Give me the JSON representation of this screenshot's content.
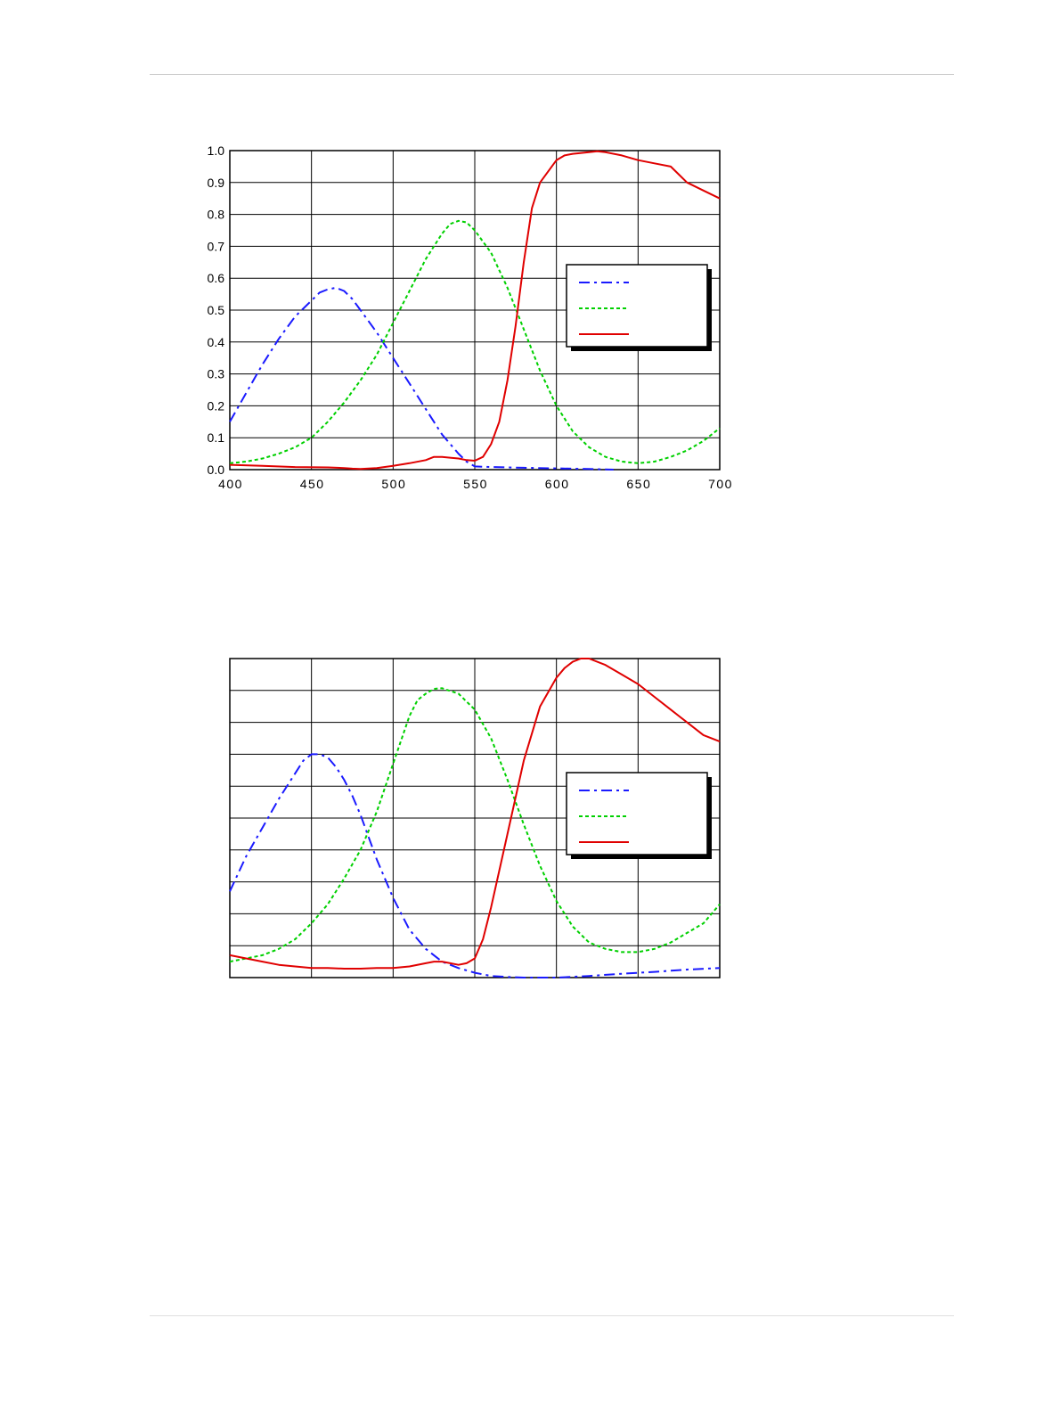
{
  "page": {
    "header_rule": true,
    "footer_rule": true
  },
  "chart_data": [
    {
      "type": "line",
      "title": "",
      "xlabel": "",
      "ylabel": "",
      "xlim": [
        400,
        700
      ],
      "ylim": [
        0.0,
        1.0
      ],
      "grid": true,
      "legend": "right",
      "x_ticks": [
        "400",
        "450",
        "500",
        "550",
        "600",
        "650",
        "700"
      ],
      "y_ticks": [
        "0.0",
        "0.1",
        "0.2",
        "0.3",
        "0.4",
        "0.5",
        "0.6",
        "0.7",
        "0.8",
        "0.9",
        "1.0"
      ],
      "series": [
        {
          "color": "#1a1aff",
          "style": "dash-dot",
          "x": [
            400,
            410,
            420,
            430,
            440,
            450,
            455,
            460,
            465,
            470,
            475,
            480,
            490,
            500,
            510,
            520,
            530,
            540,
            545,
            550,
            560,
            580,
            600,
            620,
            635
          ],
          "y": [
            0.15,
            0.24,
            0.33,
            0.41,
            0.48,
            0.53,
            0.555,
            0.565,
            0.57,
            0.56,
            0.535,
            0.5,
            0.43,
            0.35,
            0.27,
            0.19,
            0.11,
            0.05,
            0.025,
            0.01,
            0.008,
            0.006,
            0.004,
            0.002,
            0.0
          ]
        },
        {
          "color": "#00d000",
          "style": "dotted",
          "x": [
            400,
            410,
            420,
            430,
            440,
            450,
            460,
            470,
            480,
            490,
            500,
            510,
            520,
            530,
            535,
            540,
            545,
            550,
            560,
            570,
            580,
            590,
            600,
            610,
            620,
            630,
            640,
            650,
            660,
            670,
            680,
            690,
            700
          ],
          "y": [
            0.02,
            0.025,
            0.035,
            0.05,
            0.07,
            0.1,
            0.15,
            0.21,
            0.28,
            0.36,
            0.46,
            0.56,
            0.66,
            0.74,
            0.77,
            0.78,
            0.775,
            0.75,
            0.68,
            0.57,
            0.44,
            0.31,
            0.2,
            0.12,
            0.07,
            0.04,
            0.025,
            0.02,
            0.025,
            0.04,
            0.06,
            0.09,
            0.13
          ]
        },
        {
          "color": "#e00000",
          "style": "solid",
          "x": [
            400,
            420,
            440,
            460,
            470,
            475,
            480,
            490,
            500,
            510,
            520,
            525,
            530,
            540,
            545,
            550,
            555,
            560,
            565,
            570,
            575,
            580,
            585,
            590,
            600,
            605,
            610,
            620,
            625,
            630,
            640,
            650,
            660,
            670,
            680,
            690,
            700
          ],
          "y": [
            0.015,
            0.012,
            0.008,
            0.007,
            0.005,
            0.003,
            0.002,
            0.005,
            0.012,
            0.02,
            0.03,
            0.04,
            0.04,
            0.035,
            0.03,
            0.028,
            0.04,
            0.08,
            0.15,
            0.28,
            0.45,
            0.65,
            0.82,
            0.9,
            0.97,
            0.985,
            0.99,
            0.995,
            0.998,
            0.995,
            0.985,
            0.97,
            0.96,
            0.95,
            0.9,
            0.875,
            0.85
          ]
        }
      ]
    },
    {
      "type": "line",
      "title": "",
      "xlabel": "",
      "ylabel": "",
      "xlim": [
        400,
        700
      ],
      "ylim": [
        0.0,
        1.0
      ],
      "grid": true,
      "legend": "right",
      "x_ticks": [],
      "y_ticks": [],
      "series": [
        {
          "color": "#1a1aff",
          "style": "dash-dot",
          "x": [
            400,
            410,
            420,
            430,
            440,
            445,
            450,
            455,
            460,
            465,
            470,
            475,
            480,
            490,
            500,
            510,
            520,
            530,
            540,
            550,
            560,
            570,
            580,
            600,
            620,
            640,
            660,
            680,
            700
          ],
          "y": [
            0.27,
            0.38,
            0.47,
            0.56,
            0.64,
            0.68,
            0.7,
            0.7,
            0.69,
            0.66,
            0.62,
            0.57,
            0.51,
            0.37,
            0.25,
            0.15,
            0.09,
            0.05,
            0.03,
            0.015,
            0.005,
            0.002,
            0.0,
            0.0,
            0.005,
            0.012,
            0.018,
            0.025,
            0.03
          ]
        },
        {
          "color": "#00d000",
          "style": "dotted",
          "x": [
            400,
            410,
            420,
            430,
            440,
            450,
            460,
            470,
            480,
            490,
            500,
            510,
            515,
            520,
            525,
            530,
            540,
            550,
            560,
            570,
            580,
            590,
            600,
            610,
            620,
            630,
            640,
            650,
            660,
            670,
            680,
            690,
            700
          ],
          "y": [
            0.05,
            0.06,
            0.07,
            0.09,
            0.12,
            0.17,
            0.23,
            0.31,
            0.4,
            0.52,
            0.67,
            0.82,
            0.87,
            0.89,
            0.905,
            0.907,
            0.89,
            0.84,
            0.75,
            0.62,
            0.48,
            0.35,
            0.24,
            0.16,
            0.11,
            0.09,
            0.08,
            0.08,
            0.09,
            0.11,
            0.14,
            0.17,
            0.23
          ]
        },
        {
          "color": "#e00000",
          "style": "solid",
          "x": [
            400,
            410,
            420,
            430,
            440,
            450,
            460,
            470,
            480,
            490,
            500,
            510,
            520,
            525,
            530,
            535,
            540,
            545,
            550,
            555,
            560,
            570,
            580,
            590,
            600,
            605,
            610,
            615,
            620,
            630,
            640,
            650,
            660,
            670,
            680,
            690,
            700
          ],
          "y": [
            0.07,
            0.06,
            0.05,
            0.04,
            0.035,
            0.03,
            0.03,
            0.028,
            0.028,
            0.03,
            0.03,
            0.035,
            0.045,
            0.05,
            0.05,
            0.045,
            0.04,
            0.045,
            0.06,
            0.12,
            0.22,
            0.45,
            0.68,
            0.85,
            0.94,
            0.97,
            0.99,
            1.0,
            1.0,
            0.98,
            0.95,
            0.92,
            0.88,
            0.84,
            0.8,
            0.76,
            0.74
          ]
        }
      ]
    }
  ]
}
